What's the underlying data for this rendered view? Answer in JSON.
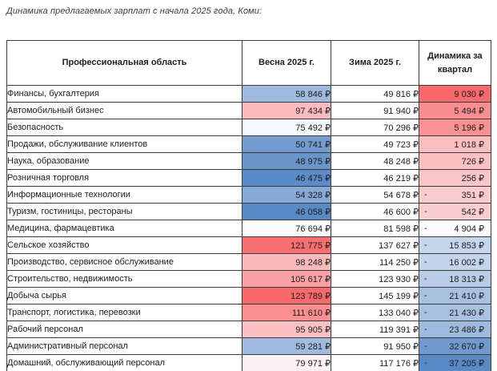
{
  "page": {
    "caption": "Динамика предлагаемых зарплат с начала 2025 года, Коми:"
  },
  "colors": {
    "scale_low_blue": "#5A8AC6",
    "scale_mid_white": "#FCFCFF",
    "scale_high_red": "#F8696B",
    "grid_border": "#3A3A3A",
    "text": "#1D1D1D"
  },
  "table": {
    "columns": [
      "Профессиональная область",
      "Весна 2025 г.",
      "Зима 2025 г.",
      "Динамика за квартал"
    ],
    "rows": [
      {
        "area": "Финансы, бухгалтерия",
        "spring": "58 846 ₽",
        "spring_bg": "#9EBADE",
        "winter": "49 816 ₽",
        "delta_sign": "",
        "delta": "9 030 ₽",
        "delta_bg": "#F8696B"
      },
      {
        "area": "Автомобильный бизнес",
        "spring": "97 434 ₽",
        "spring_bg": "#FABBBE",
        "winter": "91 940 ₽",
        "delta_sign": "",
        "delta": "5 494 ₽",
        "delta_bg": "#F98E90"
      },
      {
        "area": "Безопасность",
        "spring": "75 492 ₽",
        "spring_bg": "#F6F8FD",
        "winter": "70 296 ₽",
        "delta_sign": "",
        "delta": "5 196 ₽",
        "delta_bg": "#F99194"
      },
      {
        "area": "Продажи, обслуживание клиентов",
        "spring": "50 741 ₽",
        "spring_bg": "#739BCF",
        "winter": "49 723 ₽",
        "delta_sign": "",
        "delta": "1 018 ₽",
        "delta_bg": "#FABDC0"
      },
      {
        "area": "Наука, образование",
        "spring": "48 975 ₽",
        "spring_bg": "#6995CB",
        "winter": "48 248 ₽",
        "delta_sign": "",
        "delta": "726 ₽",
        "delta_bg": "#FAC0C3"
      },
      {
        "area": "Розничная торговля",
        "spring": "46 475 ₽",
        "spring_bg": "#5C8CC7",
        "winter": "46 219 ₽",
        "delta_sign": "",
        "delta": "256 ₽",
        "delta_bg": "#FAC5C8"
      },
      {
        "area": "Информационные технологии",
        "spring": "54 328 ₽",
        "spring_bg": "#86A9D5",
        "winter": "54 678 ₽",
        "delta_sign": "-",
        "delta": "351 ₽",
        "delta_bg": "#FACCCE"
      },
      {
        "area": "Туризм, гостиницы, рестораны",
        "spring": "46 058 ₽",
        "spring_bg": "#5A8AC6",
        "winter": "46 600 ₽",
        "delta_sign": "-",
        "delta": "542 ₽",
        "delta_bg": "#FACED0"
      },
      {
        "area": "Медицина, фармацевтика",
        "spring": "76 694 ₽",
        "spring_bg": "#FCFCFF",
        "winter": "81 598 ₽",
        "delta_sign": "-",
        "delta": "4 904 ₽",
        "delta_bg": "#FCFCFF"
      },
      {
        "area": "Сельское хозяйство",
        "spring": "121 775 ₽",
        "spring_bg": "#F86F71",
        "winter": "137 627 ₽",
        "delta_sign": "-",
        "delta": "15 853 ₽",
        "delta_bg": "#C5D5EB"
      },
      {
        "area": "Производство, сервисное обслуживание",
        "spring": "98 248 ₽",
        "spring_bg": "#FAB9BB",
        "winter": "114 250 ₽",
        "delta_sign": "-",
        "delta": "16 002 ₽",
        "delta_bg": "#C4D4EB"
      },
      {
        "area": "Строительство, недвижимость",
        "spring": "105 617 ₽",
        "spring_bg": "#F9A2A4",
        "winter": "123 930 ₽",
        "delta_sign": "-",
        "delta": "18 313 ₽",
        "delta_bg": "#B8CCE7"
      },
      {
        "area": "Добыча сырья",
        "spring": "123 789 ₽",
        "spring_bg": "#F8696B",
        "winter": "145 199 ₽",
        "delta_sign": "-",
        "delta": "21 410 ₽",
        "delta_bg": "#A9C1E1"
      },
      {
        "area": "Транспорт, логистика, перевозки",
        "spring": "111 610 ₽",
        "spring_bg": "#F98F91",
        "winter": "133 040 ₽",
        "delta_sign": "-",
        "delta": "21 430 ₽",
        "delta_bg": "#A9C1E1"
      },
      {
        "area": "Рабочий персонал",
        "spring": "95 905 ₽",
        "spring_bg": "#FAC0C2",
        "winter": "119 391 ₽",
        "delta_sign": "-",
        "delta": "23 486 ₽",
        "delta_bg": "#9EBADE"
      },
      {
        "area": "Административный персонал",
        "spring": "59 281 ₽",
        "spring_bg": "#A0BBDE",
        "winter": "91 950 ₽",
        "delta_sign": "-",
        "delta": "32 670 ₽",
        "delta_bg": "#709ACE"
      },
      {
        "area": "Домашний, обслуживающий персонал",
        "spring": "79 971 ₽",
        "spring_bg": "#FCF2F5",
        "winter": "117 176 ₽",
        "delta_sign": "-",
        "delta": "37 205 ₽",
        "delta_bg": "#5A8AC6"
      }
    ]
  },
  "chart_data": {
    "type": "table",
    "title": "Динамика предлагаемых зарплат с начала 2025 года, Коми:",
    "columns": [
      "Профессиональная область",
      "Весна 2025 г.",
      "Зима 2025 г.",
      "Динамика за квартал"
    ],
    "currency": "₽",
    "conditional_formatting": "diverging color scale blue(min) → white(median) → red(max) on columns 'Весна 2025 г.' and 'Динамика за квартал'",
    "rows": [
      {
        "area": "Финансы, бухгалтерия",
        "spring_2025": 58846,
        "winter_2025": 49816,
        "quarter_delta": 9030
      },
      {
        "area": "Автомобильный бизнес",
        "spring_2025": 97434,
        "winter_2025": 91940,
        "quarter_delta": 5494
      },
      {
        "area": "Безопасность",
        "spring_2025": 75492,
        "winter_2025": 70296,
        "quarter_delta": 5196
      },
      {
        "area": "Продажи, обслуживание клиентов",
        "spring_2025": 50741,
        "winter_2025": 49723,
        "quarter_delta": 1018
      },
      {
        "area": "Наука, образование",
        "spring_2025": 48975,
        "winter_2025": 48248,
        "quarter_delta": 726
      },
      {
        "area": "Розничная торговля",
        "spring_2025": 46475,
        "winter_2025": 46219,
        "quarter_delta": 256
      },
      {
        "area": "Информационные технологии",
        "spring_2025": 54328,
        "winter_2025": 54678,
        "quarter_delta": -351
      },
      {
        "area": "Туризм, гостиницы, рестораны",
        "spring_2025": 46058,
        "winter_2025": 46600,
        "quarter_delta": -542
      },
      {
        "area": "Медицина, фармацевтика",
        "spring_2025": 76694,
        "winter_2025": 81598,
        "quarter_delta": -4904
      },
      {
        "area": "Сельское хозяйство",
        "spring_2025": 121775,
        "winter_2025": 137627,
        "quarter_delta": -15853
      },
      {
        "area": "Производство, сервисное обслуживание",
        "spring_2025": 98248,
        "winter_2025": 114250,
        "quarter_delta": -16002
      },
      {
        "area": "Строительство, недвижимость",
        "spring_2025": 105617,
        "winter_2025": 123930,
        "quarter_delta": -18313
      },
      {
        "area": "Добыча сырья",
        "spring_2025": 123789,
        "winter_2025": 145199,
        "quarter_delta": -21410
      },
      {
        "area": "Транспорт, логистика, перевозки",
        "spring_2025": 111610,
        "winter_2025": 133040,
        "quarter_delta": -21430
      },
      {
        "area": "Рабочий персонал",
        "spring_2025": 95905,
        "winter_2025": 119391,
        "quarter_delta": -23486
      },
      {
        "area": "Административный персонал",
        "spring_2025": 59281,
        "winter_2025": 91950,
        "quarter_delta": -32670
      },
      {
        "area": "Домашний, обслуживающий персонал",
        "spring_2025": 79971,
        "winter_2025": 117176,
        "quarter_delta": -37205
      }
    ]
  }
}
